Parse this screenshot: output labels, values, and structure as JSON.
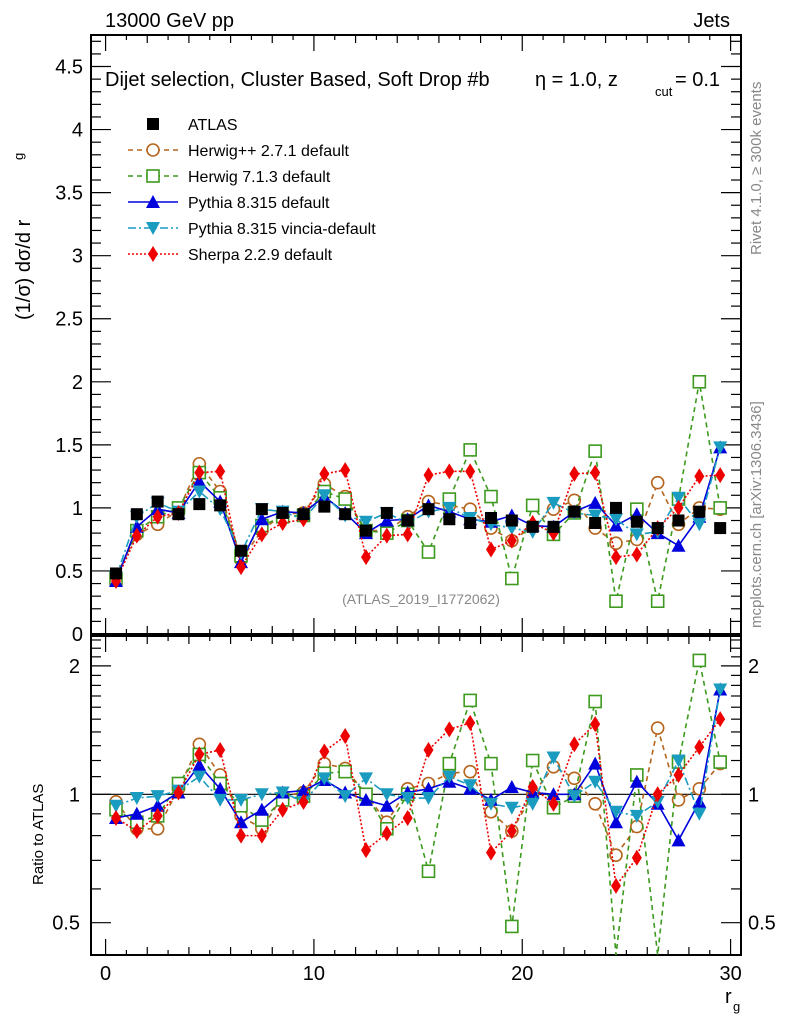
{
  "header": {
    "left": "13000 GeV pp",
    "right": "Jets"
  },
  "side_labels": {
    "rivet": "Rivet 4.1.0, ≥ 300k events",
    "mcplots": "mcplots.cern.ch [arXiv:1306.3436]"
  },
  "chart_data": [
    {
      "type": "line",
      "panel": "main",
      "title": "Dijet selection, Cluster Based, Soft Drop #b",
      "title_suffix_eta": "η = 1.0, z",
      "title_sub": "cut",
      "title_end": " = 0.1",
      "ylabel": "(1/σ) dσ/d r",
      "ylabel_sub": "g",
      "watermark": "(ATLAS_2019_I1772062)",
      "xlim": [
        -0.7,
        30.5
      ],
      "ylim": [
        0,
        4.75
      ],
      "yticks": [
        0,
        0.5,
        1,
        1.5,
        2,
        2.5,
        3,
        3.5,
        4,
        4.5
      ],
      "ytick_labels": [
        "0",
        "0.5",
        "1",
        "1.5",
        "2",
        "2.5",
        "3",
        "3.5",
        "4",
        "4.5"
      ],
      "x": [
        0.5,
        1.5,
        2.5,
        3.5,
        4.5,
        5.5,
        6.5,
        7.5,
        8.5,
        9.5,
        10.5,
        11.5,
        12.5,
        13.5,
        14.5,
        15.5,
        16.5,
        17.5,
        18.5,
        19.5,
        20.5,
        21.5,
        22.5,
        23.5,
        24.5,
        25.5,
        26.5,
        27.5,
        28.5,
        29.5
      ],
      "legend_position": "top-left",
      "series": [
        {
          "name": "ATLAS",
          "color": "#000000",
          "marker": "square",
          "line": "none",
          "values": [
            0.48,
            0.95,
            1.05,
            0.95,
            1.03,
            1.02,
            0.66,
            0.99,
            0.96,
            0.95,
            1.01,
            0.95,
            0.82,
            0.96,
            0.9,
            0.99,
            0.91,
            0.88,
            0.92,
            0.9,
            0.85,
            0.85,
            0.97,
            0.88,
            1.0,
            0.89,
            0.84,
            0.9,
            0.97,
            0.84
          ]
        },
        {
          "name": "Herwig++ 2.7.1 default",
          "color": "#b5651d",
          "marker": "open-circle",
          "line": "dashed",
          "values": [
            0.46,
            0.79,
            0.87,
            0.98,
            1.35,
            1.13,
            0.59,
            0.82,
            0.95,
            0.96,
            1.19,
            1.09,
            0.82,
            0.82,
            0.93,
            1.05,
            1.02,
            0.99,
            0.84,
            0.74,
            0.85,
            0.99,
            1.06,
            0.84,
            0.72,
            0.75,
            1.2,
            0.87,
            1.0,
            0.99
          ]
        },
        {
          "name": "Herwig 7.1.3 default",
          "color": "#3d9a1e",
          "marker": "open-square",
          "line": "dashed",
          "values": [
            0.44,
            0.82,
            0.93,
            1.0,
            1.28,
            1.08,
            0.62,
            0.86,
            0.93,
            0.94,
            1.13,
            1.07,
            0.82,
            0.8,
            0.9,
            0.65,
            1.07,
            1.46,
            1.09,
            0.44,
            1.02,
            0.79,
            0.96,
            1.45,
            0.26,
            0.99,
            0.26,
            1.07,
            2.0,
            1.0
          ]
        },
        {
          "name": "Pythia 8.315 default",
          "color": "#0000dd",
          "marker": "triangle-up",
          "line": "solid",
          "values": [
            0.42,
            0.85,
            0.99,
            0.96,
            1.21,
            1.05,
            0.57,
            0.91,
            0.97,
            0.96,
            1.09,
            0.96,
            0.8,
            0.9,
            0.91,
            1.02,
            0.97,
            0.91,
            0.89,
            0.94,
            0.86,
            0.85,
            0.97,
            1.04,
            0.86,
            0.95,
            0.8,
            0.7,
            0.93,
            1.48
          ]
        },
        {
          "name": "Pythia 8.315 vincia-default",
          "color": "#1a9bc0",
          "marker": "triangle-down",
          "line": "dashdot",
          "values": [
            0.45,
            0.93,
            1.04,
            0.97,
            1.13,
            0.99,
            0.64,
            0.99,
            0.97,
            0.91,
            1.1,
            0.94,
            0.89,
            0.96,
            0.88,
            0.97,
            1.0,
            0.92,
            0.87,
            0.84,
            0.81,
            1.04,
            0.96,
            0.94,
            0.91,
            0.79,
            0.81,
            1.08,
            0.87,
            1.48
          ]
        },
        {
          "name": "Sherpa 2.2.9 default",
          "color": "#ee0000",
          "marker": "diamond",
          "line": "dotted",
          "values": [
            0.42,
            0.78,
            0.93,
            0.96,
            1.28,
            1.29,
            0.53,
            0.79,
            0.88,
            0.91,
            1.27,
            1.3,
            0.61,
            0.78,
            0.79,
            1.26,
            1.29,
            1.29,
            0.67,
            0.74,
            0.88,
            0.8,
            1.27,
            1.28,
            0.61,
            0.63,
            0.84,
            1.0,
            1.25,
            1.26
          ]
        }
      ]
    },
    {
      "type": "line",
      "panel": "ratio",
      "ylabel": "Ratio to ATLAS",
      "xlabel": "r",
      "xlabel_sub": "g",
      "xlim": [
        -0.7,
        30.5
      ],
      "ylim": [
        0.42,
        2.35
      ],
      "yscale": "log",
      "yticks": [
        0.5,
        1,
        2
      ],
      "ytick_labels": [
        "0.5",
        "1",
        "2"
      ],
      "xticks": [
        0,
        10,
        20,
        30
      ],
      "xtick_labels": [
        "0",
        "10",
        "20",
        "30"
      ],
      "reference_line": 1,
      "series": [
        {
          "name": "Herwig++ 2.7.1 default",
          "values": [
            0.96,
            0.83,
            0.83,
            1.03,
            1.31,
            1.11,
            0.89,
            0.83,
            0.99,
            1.01,
            1.18,
            1.15,
            1.0,
            0.86,
            1.03,
            1.06,
            1.12,
            1.13,
            0.91,
            0.82,
            1.0,
            1.16,
            1.09,
            0.95,
            0.72,
            0.84,
            1.43,
            0.97,
            1.03,
            1.18
          ]
        },
        {
          "name": "Herwig 7.1.3 default",
          "values": [
            0.92,
            0.86,
            0.89,
            1.06,
            1.24,
            1.06,
            0.94,
            0.87,
            0.97,
            0.99,
            1.12,
            1.13,
            1.0,
            0.83,
            1.0,
            0.66,
            1.18,
            1.66,
            1.18,
            0.49,
            1.2,
            0.93,
            0.99,
            1.65,
            0.26,
            1.11,
            0.31,
            1.19,
            2.06,
            1.19
          ]
        },
        {
          "name": "Pythia 8.315 default",
          "values": [
            0.88,
            0.9,
            0.94,
            1.01,
            1.17,
            1.03,
            0.86,
            0.92,
            1.01,
            1.02,
            1.08,
            1.01,
            0.97,
            0.94,
            1.01,
            1.03,
            1.07,
            1.03,
            0.97,
            1.04,
            1.01,
            1.0,
            1.0,
            1.18,
            0.86,
            1.07,
            0.95,
            0.78,
            0.96,
            1.76
          ]
        },
        {
          "name": "Pythia 8.315 vincia-default",
          "values": [
            0.94,
            0.98,
            0.99,
            1.02,
            1.1,
            0.97,
            0.97,
            1.0,
            1.01,
            0.96,
            1.09,
            0.99,
            1.09,
            1.0,
            0.98,
            0.98,
            1.1,
            1.05,
            0.95,
            0.93,
            0.95,
            1.22,
            0.99,
            1.07,
            0.91,
            0.89,
            0.96,
            1.2,
            0.9,
            1.76
          ]
        },
        {
          "name": "Sherpa 2.2.9 default",
          "values": [
            0.88,
            0.82,
            0.89,
            1.01,
            1.24,
            1.27,
            0.8,
            0.8,
            0.92,
            0.96,
            1.26,
            1.37,
            0.74,
            0.81,
            0.88,
            1.27,
            1.42,
            1.47,
            0.73,
            0.82,
            1.04,
            0.95,
            1.31,
            1.46,
            0.61,
            0.71,
            1.0,
            1.11,
            1.29,
            1.5
          ]
        }
      ]
    }
  ]
}
